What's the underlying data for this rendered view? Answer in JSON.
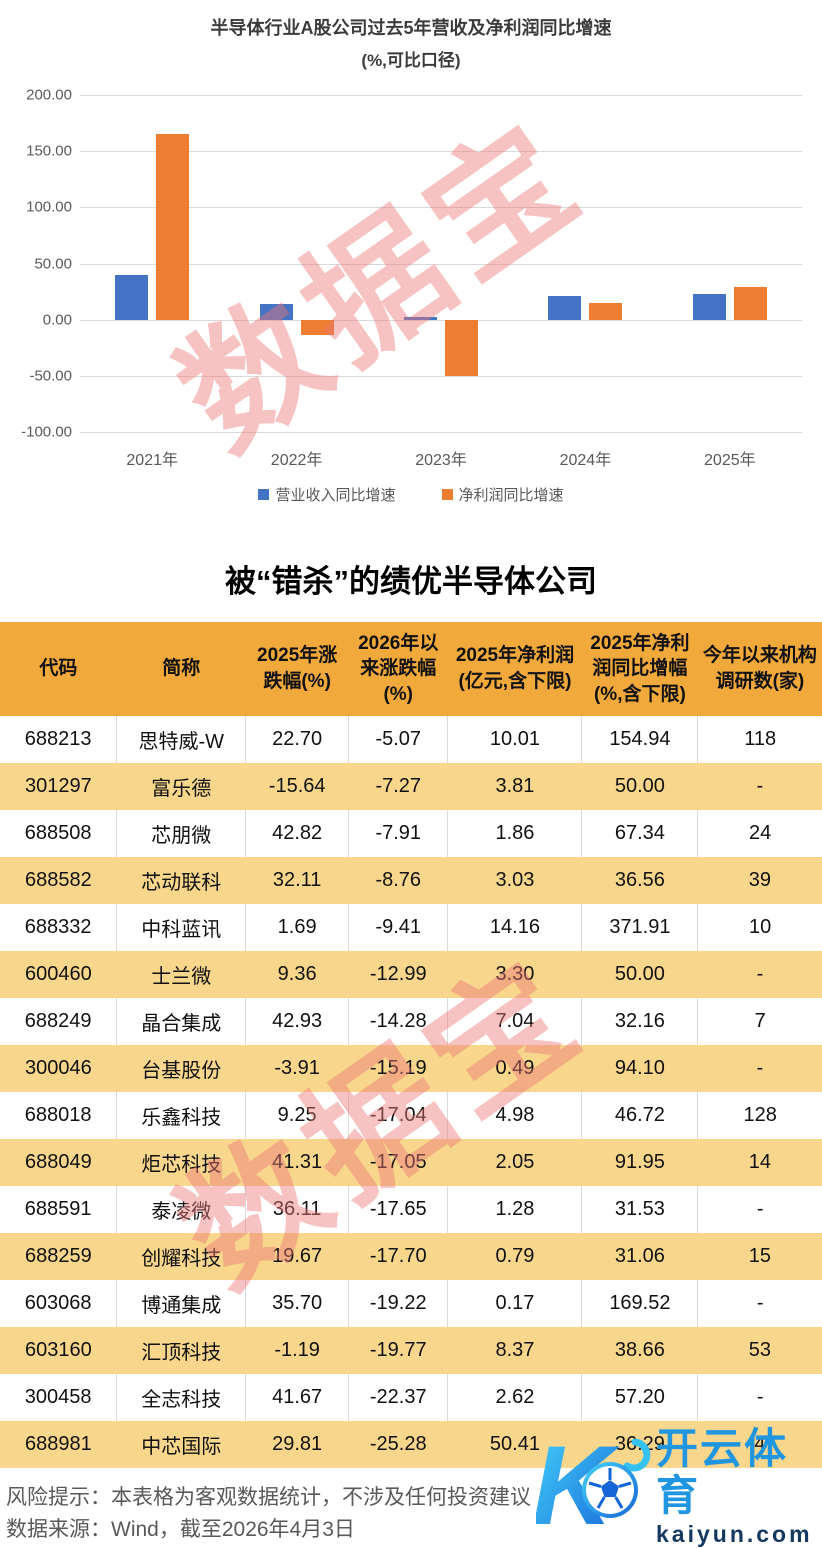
{
  "chart": {
    "title": "半导体行业A股公司过去5年营收及净利润同比增速",
    "subtitle": "(%,可比口径)",
    "watermark": "数据宝",
    "legend": [
      {
        "key": "revenue",
        "label": "营业收入同比增速",
        "color": "#4472C4"
      },
      {
        "key": "profit",
        "label": "净利润同比增速",
        "color": "#ED7D31"
      }
    ]
  },
  "chart_data": {
    "type": "bar",
    "title": "半导体行业A股公司过去5年营收及净利润同比增速 (%,可比口径)",
    "categories": [
      "2021年",
      "2022年",
      "2023年",
      "2024年",
      "2025年"
    ],
    "series": [
      {
        "key": "revenue",
        "name": "营业收入同比增速",
        "color": "#4472C4",
        "values": [
          40,
          14,
          2,
          21,
          23
        ]
      },
      {
        "key": "profit",
        "name": "净利润同比增速",
        "color": "#ED7D31",
        "values": [
          165,
          -14,
          -50,
          15,
          29
        ]
      }
    ],
    "xlabel": "",
    "ylabel": "",
    "ylim": [
      -100,
      200
    ],
    "yticks": [
      200,
      150,
      100,
      50,
      0,
      -50,
      -100
    ],
    "grid": true,
    "legend_position": "bottom"
  },
  "table": {
    "title": "被“错杀”的绩优半导体公司",
    "watermark": "数据宝",
    "columns": [
      "代码",
      "简称",
      "2025年涨跌幅(%)",
      "2026年以来涨跌幅(%)",
      "2025年净利润(亿元,含下限)",
      "2025年净利润同比增幅(%,含下限)",
      "今年以来机构调研数(家)"
    ],
    "col_widths_pct": [
      14.2,
      15.7,
      12.5,
      12.1,
      16.3,
      14.1,
      15.1
    ],
    "rows": [
      [
        "688213",
        "思特威-W",
        "22.70",
        "-5.07",
        "10.01",
        "154.94",
        "118"
      ],
      [
        "301297",
        "富乐德",
        "-15.64",
        "-7.27",
        "3.81",
        "50.00",
        "-"
      ],
      [
        "688508",
        "芯朋微",
        "42.82",
        "-7.91",
        "1.86",
        "67.34",
        "24"
      ],
      [
        "688582",
        "芯动联科",
        "32.11",
        "-8.76",
        "3.03",
        "36.56",
        "39"
      ],
      [
        "688332",
        "中科蓝讯",
        "1.69",
        "-9.41",
        "14.16",
        "371.91",
        "10"
      ],
      [
        "600460",
        "士兰微",
        "9.36",
        "-12.99",
        "3.30",
        "50.00",
        "-"
      ],
      [
        "688249",
        "晶合集成",
        "42.93",
        "-14.28",
        "7.04",
        "32.16",
        "7"
      ],
      [
        "300046",
        "台基股份",
        "-3.91",
        "-15.19",
        "0.49",
        "94.10",
        "-"
      ],
      [
        "688018",
        "乐鑫科技",
        "9.25",
        "-17.04",
        "4.98",
        "46.72",
        "128"
      ],
      [
        "688049",
        "炬芯科技",
        "41.31",
        "-17.05",
        "2.05",
        "91.95",
        "14"
      ],
      [
        "688591",
        "泰凌微",
        "36.11",
        "-17.65",
        "1.28",
        "31.53",
        "-"
      ],
      [
        "688259",
        "创耀科技",
        "19.67",
        "-17.70",
        "0.79",
        "31.06",
        "15"
      ],
      [
        "603068",
        "博通集成",
        "35.70",
        "-19.22",
        "0.17",
        "169.52",
        "-"
      ],
      [
        "603160",
        "汇顶科技",
        "-1.19",
        "-19.77",
        "8.37",
        "38.66",
        "53"
      ],
      [
        "300458",
        "全志科技",
        "41.67",
        "-22.37",
        "2.62",
        "57.20",
        "-"
      ],
      [
        "688981",
        "中芯国际",
        "29.81",
        "-25.28",
        "50.41",
        "36.29",
        "4"
      ]
    ],
    "colors": {
      "header_bg": "#F2A93C",
      "alt_row_bg": "#F8D68C"
    }
  },
  "footer": {
    "risk_line": "风险提示：本表格为客观数据统计，不涉及任何投资建议",
    "source_line": "数据来源：Wind，截至2026年4月3日"
  },
  "logo": {
    "brand_cn": "开云体育",
    "brand_url": "kaiyun.com"
  }
}
